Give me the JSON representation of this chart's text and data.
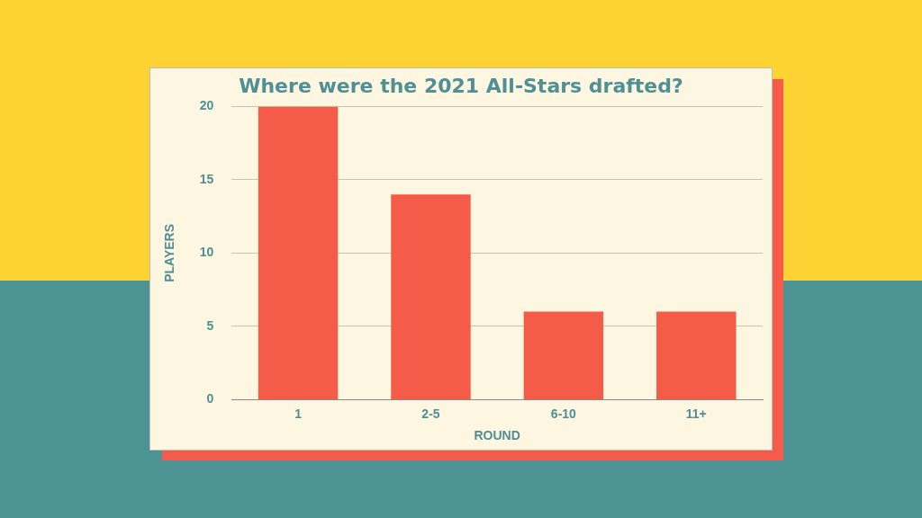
{
  "chart_data": {
    "type": "bar",
    "title": "Where were the 2021 All-Stars drafted?",
    "xlabel": "ROUND",
    "ylabel": "PLAYERS",
    "categories": [
      "1",
      "2-5",
      "6-10",
      "11+"
    ],
    "values": [
      20,
      14,
      6,
      6
    ],
    "color": "#f45b48",
    "ylim": [
      0,
      20
    ],
    "yticks": [
      0,
      5,
      10,
      15,
      20
    ],
    "grid": "y"
  }
}
